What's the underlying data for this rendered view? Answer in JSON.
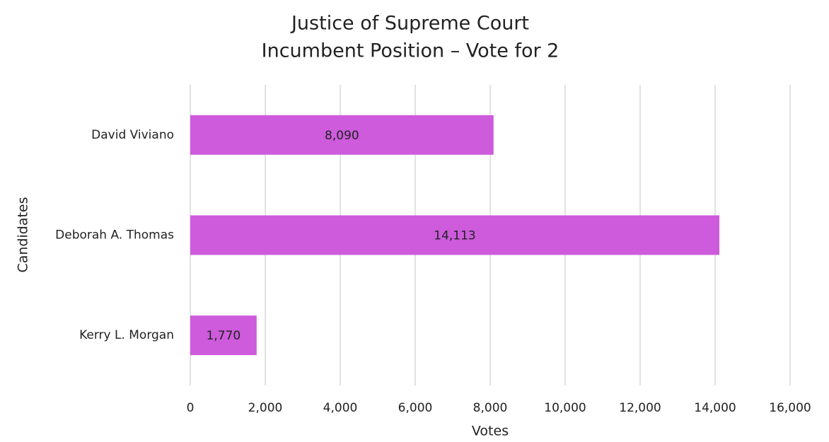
{
  "chart_data": {
    "type": "hbar",
    "title": "Justice of Supreme Court",
    "subtitle": "Incumbent Position – Vote for 2",
    "categories": [
      "David Viviano",
      "Deborah A. Thomas",
      "Kerry L. Morgan"
    ],
    "values": [
      8090,
      14113,
      1770
    ],
    "value_labels": [
      "8,090",
      "14,113",
      "1,770"
    ],
    "color": "#cd5bdc",
    "xlabel": "Votes",
    "ylabel": "Candidates",
    "xlim": [
      0,
      16000
    ],
    "xticks": [
      0,
      {
        "value": 2000,
        "label": "2,000"
      },
      {
        "value": 4000,
        "label": "4,000"
      },
      {
        "value": 6000,
        "label": "6,000"
      },
      {
        "value": 8000,
        "label": "8,000"
      },
      {
        "value": 10000,
        "label": "10,000"
      },
      {
        "value": 12000,
        "label": "12,000"
      },
      {
        "value": 14000,
        "label": "14,000"
      },
      {
        "value": 16000,
        "label": "16,000"
      }
    ],
    "grid": true
  }
}
